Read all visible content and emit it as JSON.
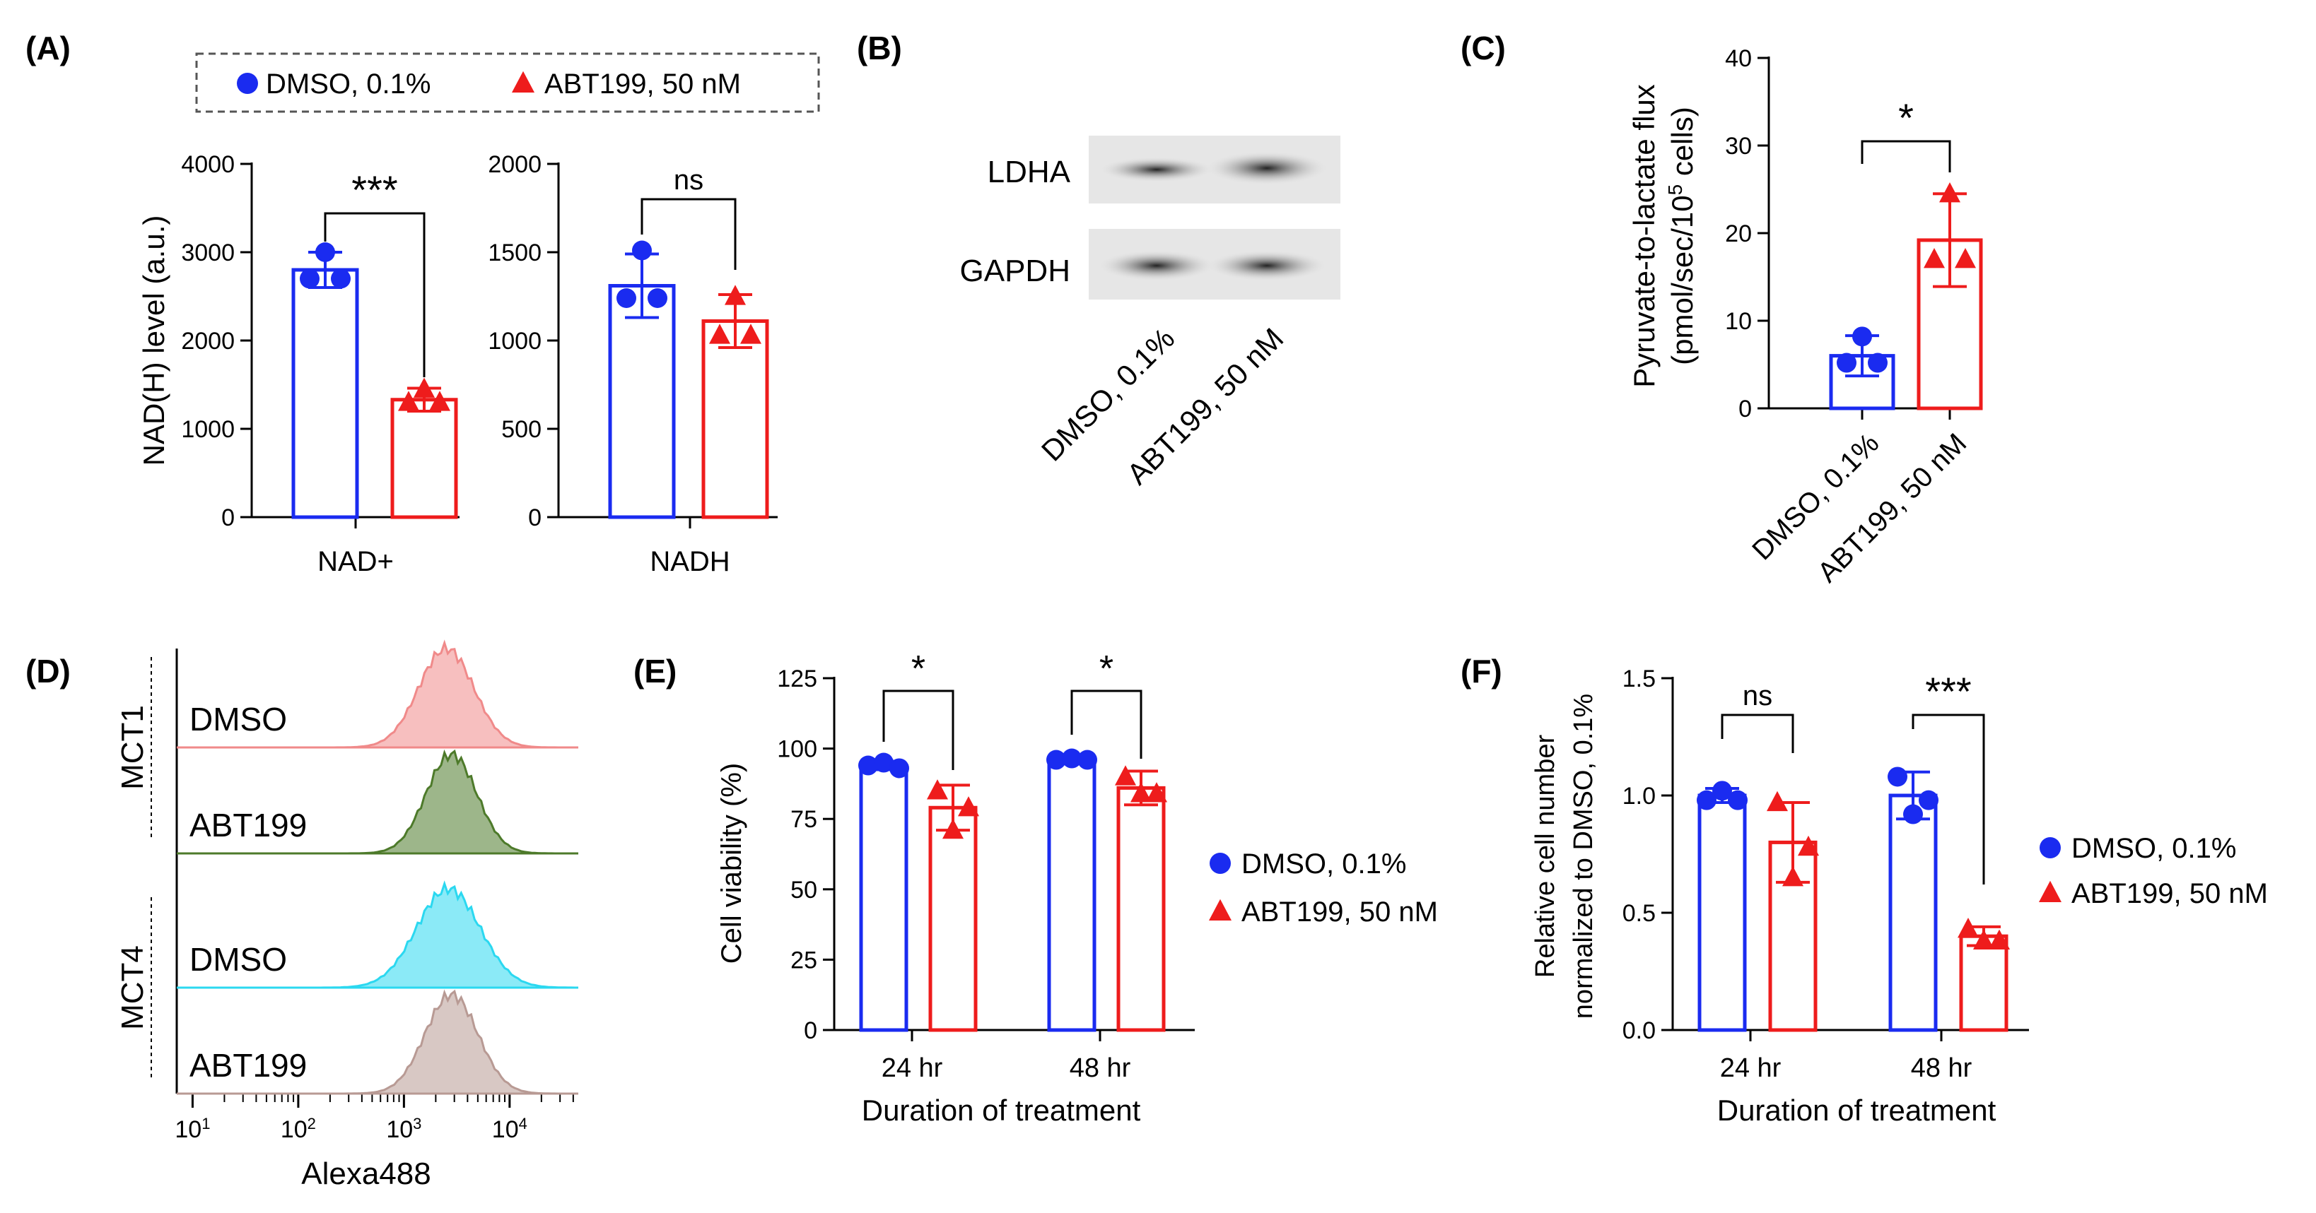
{
  "colors": {
    "dmso": "#1a2bf0",
    "abt": "#ee1c1c",
    "axis": "#000000",
    "mct1_dmso": "#f08a8a",
    "mct1_abt": "#4d7a2a",
    "mct4_dmso": "#2bd8f0",
    "mct4_abt": "#b89a94"
  },
  "legend": {
    "dmso": "DMSO, 0.1%",
    "abt": "ABT199, 50 nM"
  },
  "chart_data": [
    {
      "id": "A1",
      "panel": "(A)",
      "type": "bar",
      "ylabel": "NAD(H) level (a.u.)",
      "xlabel": "NAD+",
      "ylim": [
        0,
        4000
      ],
      "yticks": [
        0,
        1000,
        2000,
        3000,
        4000
      ],
      "yticklabels": [
        "0",
        "1000",
        "2000",
        "3000",
        "4000"
      ],
      "series": [
        {
          "name": "DMSO, 0.1%",
          "mean": 2800,
          "err": 200,
          "points": [
            2700,
            3000,
            2700
          ]
        },
        {
          "name": "ABT199, 50 nM",
          "mean": 1330,
          "err": 130,
          "points": [
            1300,
            1450,
            1300
          ]
        }
      ],
      "significance": "***"
    },
    {
      "id": "A2",
      "type": "bar",
      "xlabel": "NADH",
      "ylim": [
        0,
        2000
      ],
      "yticks": [
        0,
        500,
        1000,
        1500,
        2000
      ],
      "yticklabels": [
        "0",
        "500",
        "1000",
        "1500",
        "2000"
      ],
      "series": [
        {
          "name": "DMSO, 0.1%",
          "mean": 1310,
          "err": 180,
          "points": [
            1240,
            1510,
            1240
          ]
        },
        {
          "name": "ABT199, 50 nM",
          "mean": 1110,
          "err": 150,
          "points": [
            1030,
            1250,
            1030
          ]
        }
      ],
      "significance": "ns"
    },
    {
      "id": "B",
      "panel": "(B)",
      "type": "blot",
      "rows": [
        "LDHA",
        "GAPDH"
      ],
      "lanes": [
        "DMSO, 0.1%",
        "ABT199, 50 nM"
      ]
    },
    {
      "id": "C",
      "panel": "(C)",
      "type": "bar",
      "ylabel": [
        "Pyruvate-to-lactate flux",
        "(pmol/sec/10",
        "5",
        " cells)"
      ],
      "ylim": [
        0,
        40
      ],
      "yticks": [
        0,
        10,
        20,
        30,
        40
      ],
      "yticklabels": [
        "0",
        "10",
        "20",
        "30",
        "40"
      ],
      "categories": [
        "DMSO, 0.1%",
        "ABT199, 50 nM"
      ],
      "series": [
        {
          "name": "DMSO, 0.1%",
          "mean": 6,
          "err": 2.3,
          "points": [
            5.2,
            8.2,
            5.2
          ]
        },
        {
          "name": "ABT199, 50 nM",
          "mean": 19.2,
          "err": 5.3,
          "points": [
            17,
            24.5,
            17
          ]
        }
      ],
      "significance": "*"
    },
    {
      "id": "D",
      "panel": "(D)",
      "type": "histogram",
      "xlabel": "Alexa488",
      "xticklabels": [
        "10",
        "1",
        "10",
        "2",
        "10",
        "3",
        "10",
        "4"
      ],
      "groups": [
        {
          "label": "MCT1",
          "tracks": [
            {
              "name": "DMSO",
              "color_key": "mct1_dmso",
              "peak": 3.4,
              "width": 0.26
            },
            {
              "name": "ABT199",
              "color_key": "mct1_abt",
              "peak": 3.45,
              "width": 0.24
            }
          ]
        },
        {
          "label": "MCT4",
          "tracks": [
            {
              "name": "DMSO",
              "color_key": "mct4_dmso",
              "peak": 3.42,
              "width": 0.3
            },
            {
              "name": "ABT199",
              "color_key": "mct4_abt",
              "peak": 3.45,
              "width": 0.25
            }
          ]
        }
      ]
    },
    {
      "id": "E",
      "panel": "(E)",
      "type": "bar",
      "ylabel": "Cell viability (%)",
      "xlabel": "Duration of treatment",
      "ylim": [
        0,
        125
      ],
      "yticks": [
        0,
        25,
        50,
        75,
        100,
        125
      ],
      "yticklabels": [
        "0",
        "25",
        "50",
        "75",
        "100",
        "125"
      ],
      "categories": [
        "24 hr",
        "48 hr"
      ],
      "series": [
        {
          "name": "DMSO, 0.1%",
          "values": [
            94,
            96
          ],
          "errs": [
            1.5,
            0.5
          ],
          "points": [
            [
              94,
              95,
              93
            ],
            [
              96,
              96.5,
              96
            ]
          ]
        },
        {
          "name": "ABT199, 50 nM",
          "values": [
            79,
            86
          ],
          "errs": [
            8,
            6
          ],
          "points": [
            [
              85,
              71,
              79
            ],
            [
              90,
              84,
              84
            ]
          ]
        }
      ],
      "significance": [
        "*",
        "*"
      ]
    },
    {
      "id": "F",
      "panel": "(F)",
      "type": "bar",
      "ylabel": [
        "Relative cell number",
        "normalized to DMSO, 0.1%"
      ],
      "xlabel": "Duration of treatment",
      "ylim": [
        0,
        1.5
      ],
      "yticks": [
        0,
        0.5,
        1.0,
        1.5
      ],
      "yticklabels": [
        "0.0",
        "0.5",
        "1.0",
        "1.5"
      ],
      "categories": [
        "24 hr",
        "48 hr"
      ],
      "series": [
        {
          "name": "DMSO, 0.1%",
          "values": [
            1.0,
            1.0
          ],
          "errs": [
            0.03,
            0.1
          ],
          "points": [
            [
              0.98,
              1.02,
              0.98
            ],
            [
              1.08,
              0.92,
              0.98
            ]
          ]
        },
        {
          "name": "ABT199, 50 nM",
          "values": [
            0.8,
            0.4
          ],
          "errs": [
            0.17,
            0.04
          ],
          "points": [
            [
              0.97,
              0.65,
              0.78
            ],
            [
              0.43,
              0.38,
              0.38
            ]
          ]
        }
      ],
      "significance": [
        "ns",
        "***"
      ]
    }
  ]
}
